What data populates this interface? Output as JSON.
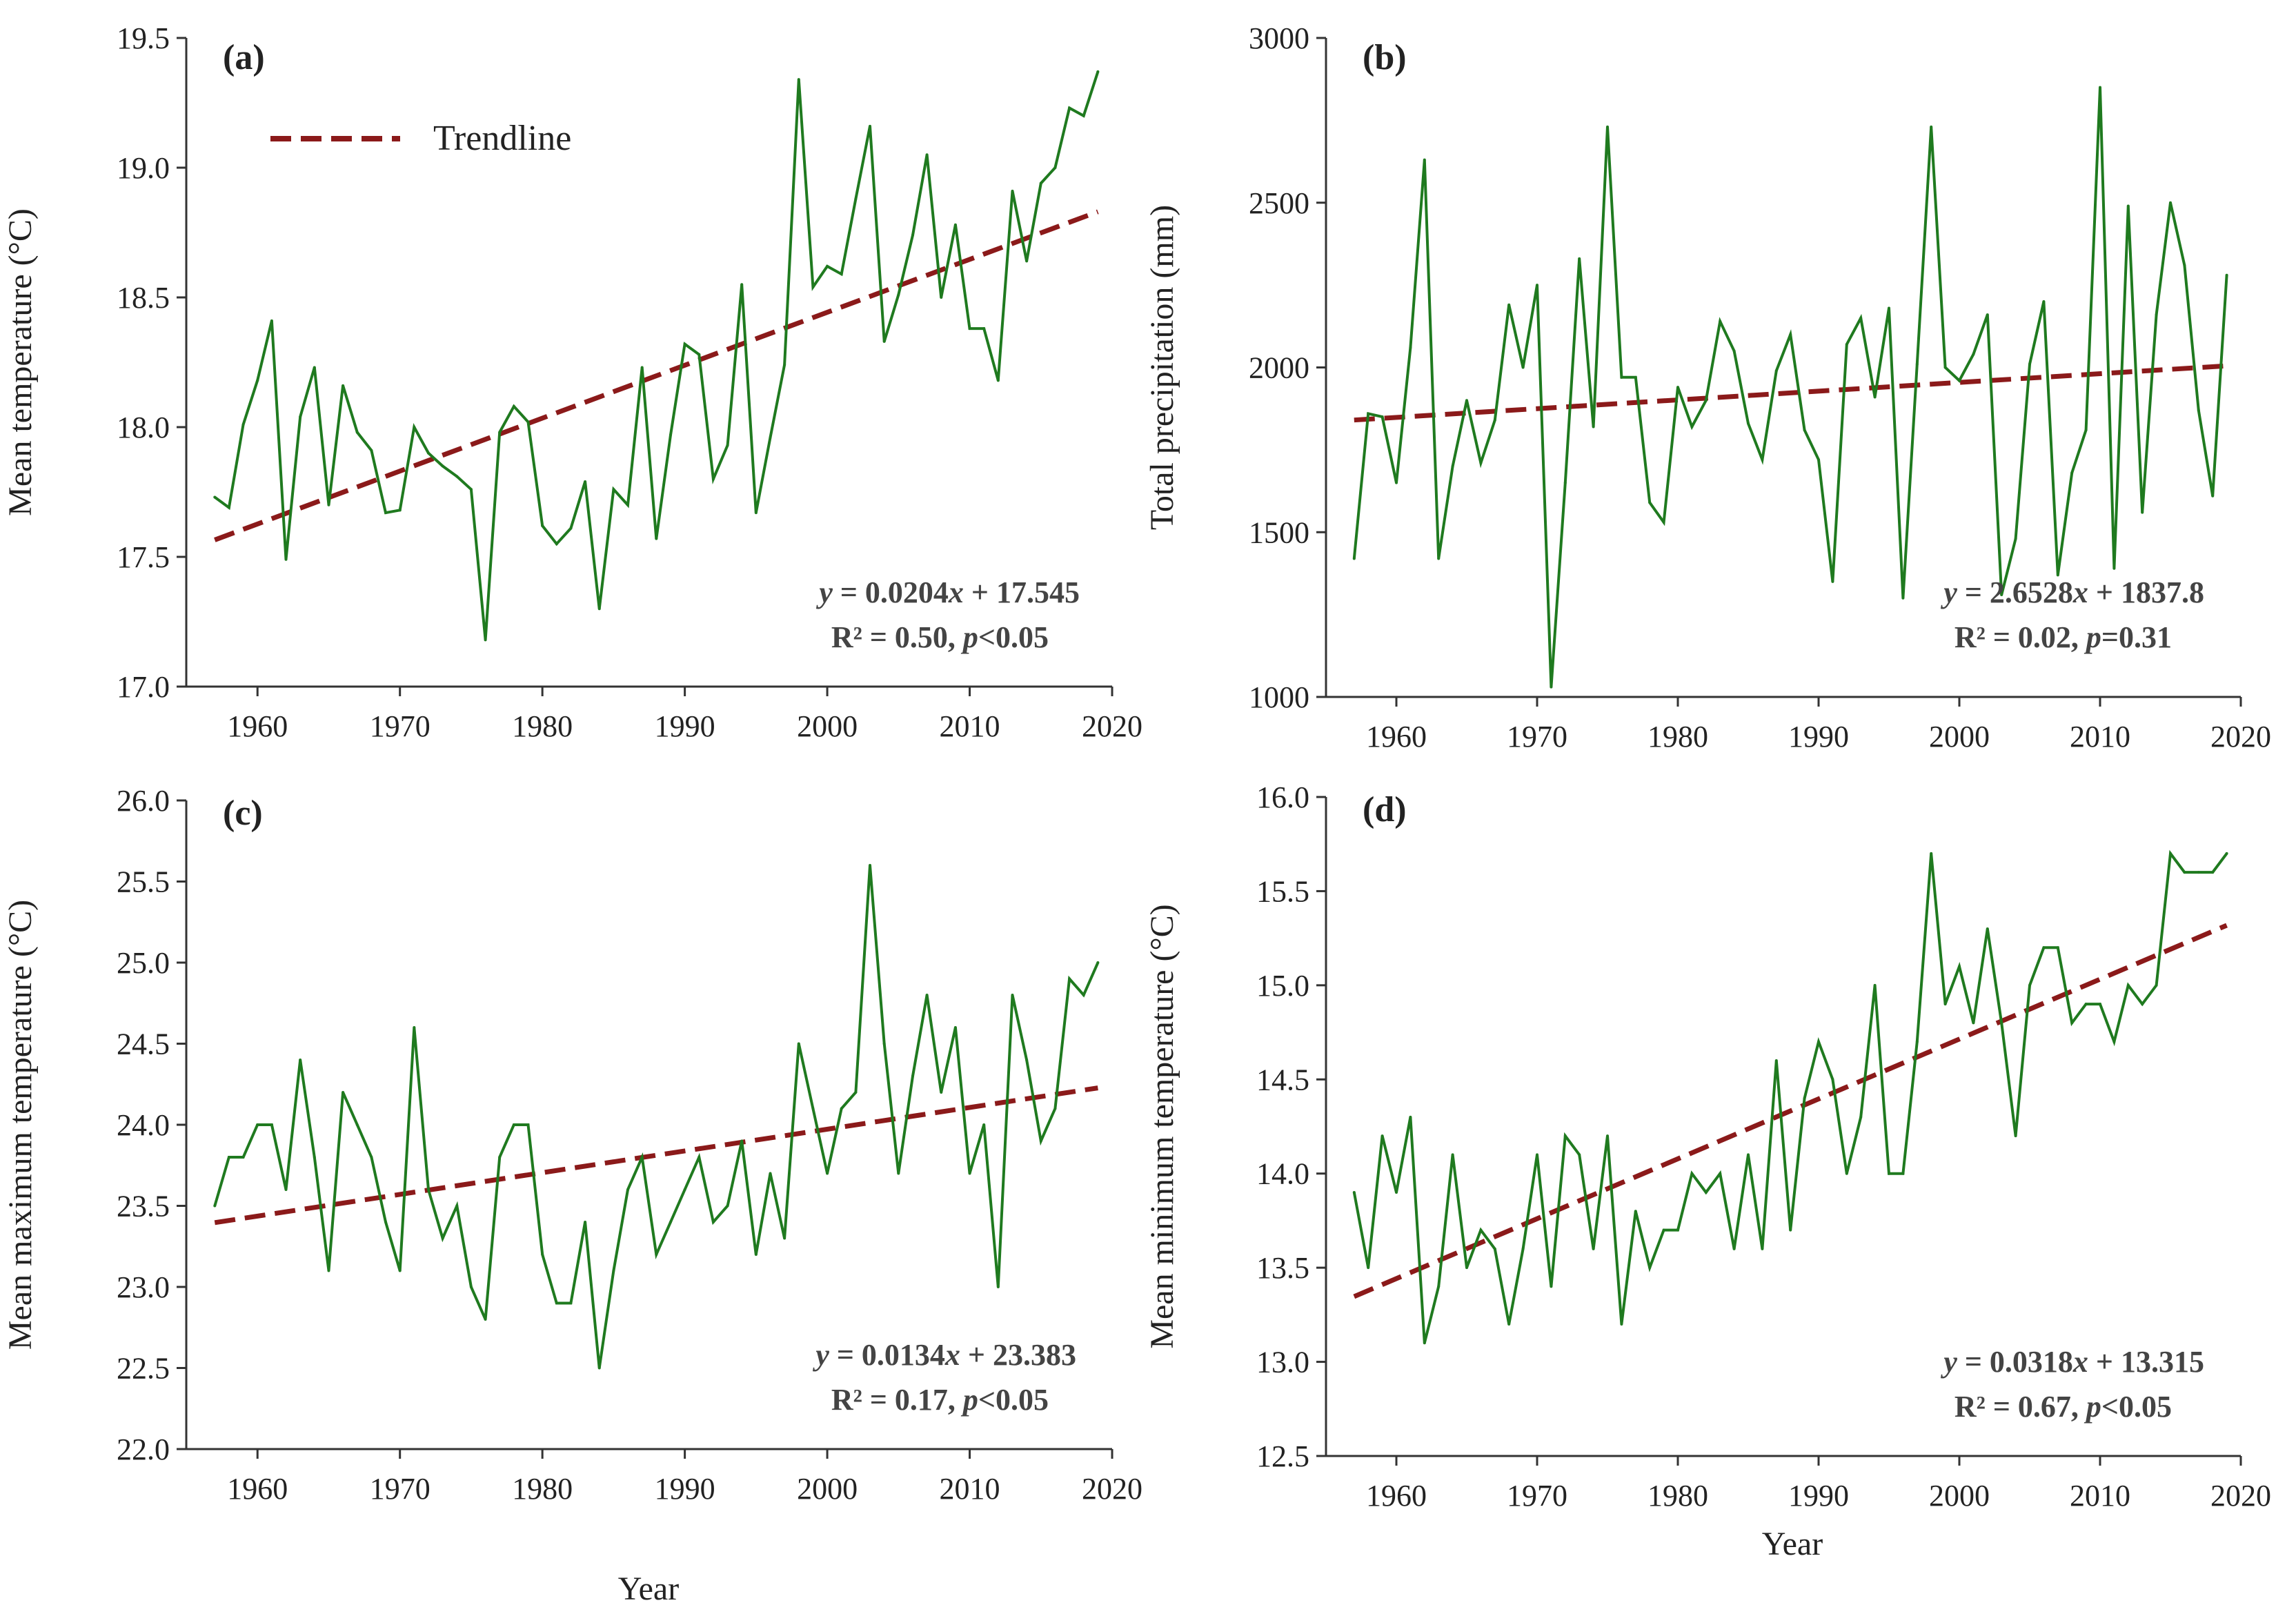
{
  "colors": {
    "series": "#1f7a1f",
    "trend": "#8b1a1a",
    "axis": "#333333",
    "text": "#222222"
  },
  "chart_data": [
    {
      "type": "line",
      "panel_label": "(a)",
      "xlabel": "",
      "ylabel": "Mean temperature (°C)",
      "xlim": [
        1955,
        2020
      ],
      "ylim": [
        17.0,
        19.5
      ],
      "xticks": [
        1960,
        1970,
        1980,
        1990,
        2000,
        2010,
        2020
      ],
      "yticks": [
        "17.0",
        "17.5",
        "18.0",
        "18.5",
        "19.0",
        "19.5"
      ],
      "legend": {
        "label": "Trendline",
        "position": "top-left"
      },
      "equation": {
        "prefix": "y",
        "body": " = 0.0204",
        "var": "x",
        "tail": " + 17.545"
      },
      "stats": {
        "r2": "R² = 0.50, ",
        "p": "p",
        "ptail": "<0.05"
      },
      "trend": {
        "slope": 0.0204,
        "intercept": 17.545,
        "base_year": 1956
      },
      "x": [
        1957,
        1958,
        1959,
        1960,
        1961,
        1962,
        1963,
        1964,
        1965,
        1966,
        1967,
        1968,
        1969,
        1970,
        1971,
        1972,
        1973,
        1974,
        1975,
        1976,
        1977,
        1978,
        1979,
        1980,
        1981,
        1982,
        1983,
        1984,
        1985,
        1986,
        1987,
        1988,
        1989,
        1990,
        1991,
        1992,
        1993,
        1994,
        1995,
        1996,
        1997,
        1998,
        1999,
        2000,
        2001,
        2002,
        2003,
        2004,
        2005,
        2006,
        2007,
        2008,
        2009,
        2010,
        2011,
        2012,
        2013,
        2014,
        2015,
        2016,
        2017,
        2018,
        2019
      ],
      "y": [
        17.73,
        17.69,
        18.01,
        18.18,
        18.41,
        17.49,
        18.04,
        18.23,
        17.7,
        18.16,
        17.98,
        17.91,
        17.67,
        17.68,
        18.0,
        17.9,
        17.85,
        17.81,
        17.76,
        17.18,
        17.98,
        18.08,
        18.02,
        17.62,
        17.55,
        17.61,
        17.79,
        17.3,
        17.76,
        17.7,
        18.23,
        17.57,
        17.97,
        18.32,
        18.28,
        17.8,
        17.93,
        18.55,
        17.67,
        17.96,
        18.24,
        19.34,
        18.54,
        18.62,
        18.59,
        18.88,
        19.16,
        18.33,
        18.51,
        18.74,
        19.05,
        18.5,
        18.78,
        18.38,
        18.38,
        18.18,
        18.91,
        18.64,
        18.94,
        19.0,
        19.23,
        19.2,
        19.37
      ]
    },
    {
      "type": "line",
      "panel_label": "(b)",
      "xlabel": "",
      "ylabel": "Total precipitation (mm)",
      "xlim": [
        1955,
        2020
      ],
      "ylim": [
        1000,
        3000
      ],
      "xticks": [
        1960,
        1970,
        1980,
        1990,
        2000,
        2010,
        2020
      ],
      "yticks": [
        "1000",
        "1500",
        "2000",
        "2500",
        "3000"
      ],
      "equation": {
        "prefix": "y",
        "body": " = 2.6528",
        "var": "x",
        "tail": " + 1837.8"
      },
      "stats": {
        "r2": "R² = 0.02, ",
        "p": "p",
        "ptail": "=0.31"
      },
      "trend": {
        "slope": 2.6528,
        "intercept": 1837.8,
        "base_year": 1956
      },
      "x": [
        1957,
        1958,
        1959,
        1960,
        1961,
        1962,
        1963,
        1964,
        1965,
        1966,
        1967,
        1968,
        1969,
        1970,
        1971,
        1972,
        1973,
        1974,
        1975,
        1976,
        1977,
        1978,
        1979,
        1980,
        1981,
        1982,
        1983,
        1984,
        1985,
        1986,
        1987,
        1988,
        1989,
        1990,
        1991,
        1992,
        1993,
        1994,
        1995,
        1996,
        1997,
        1998,
        1999,
        2000,
        2001,
        2002,
        2003,
        2004,
        2005,
        2006,
        2007,
        2008,
        2009,
        2010,
        2011,
        2012,
        2013,
        2014,
        2015,
        2016,
        2017,
        2018,
        2019
      ],
      "y": [
        1420,
        1860,
        1850,
        1650,
        2060,
        2630,
        1420,
        1700,
        1900,
        1710,
        1840,
        2190,
        2000,
        2250,
        1030,
        1650,
        2330,
        1820,
        2730,
        1970,
        1970,
        1590,
        1530,
        1940,
        1820,
        1900,
        2140,
        2050,
        1830,
        1720,
        1990,
        2100,
        1810,
        1720,
        1350,
        2070,
        2150,
        1910,
        2180,
        1300,
        2010,
        2730,
        2000,
        1960,
        2040,
        2160,
        1310,
        1480,
        2010,
        2200,
        1370,
        1680,
        1810,
        2850,
        1390,
        2490,
        1560,
        2160,
        2500,
        2310,
        1870,
        1610,
        2280
      ]
    },
    {
      "type": "line",
      "panel_label": "(c)",
      "xlabel": "",
      "ylabel": "Mean maximum temperature  (°C)",
      "xlim": [
        1955,
        2020
      ],
      "ylim": [
        22.0,
        26.0
      ],
      "xticks": [
        1960,
        1970,
        1980,
        1990,
        2000,
        2010,
        2020
      ],
      "yticks": [
        "22.0",
        "22.5",
        "23.0",
        "23.5",
        "24.0",
        "24.5",
        "25.0",
        "25.5",
        "26.0"
      ],
      "equation": {
        "prefix": "y",
        "body": " = 0.0134",
        "var": "x",
        "tail": " + 23.383"
      },
      "stats": {
        "r2": "R² = 0.17, ",
        "p": "p",
        "ptail": "<0.05"
      },
      "trend": {
        "slope": 0.0134,
        "intercept": 23.383,
        "base_year": 1956
      },
      "x": [
        1957,
        1958,
        1959,
        1960,
        1961,
        1962,
        1963,
        1964,
        1965,
        1966,
        1967,
        1968,
        1969,
        1970,
        1971,
        1972,
        1973,
        1974,
        1975,
        1976,
        1977,
        1978,
        1979,
        1980,
        1981,
        1982,
        1983,
        1984,
        1985,
        1986,
        1987,
        1988,
        1989,
        1990,
        1991,
        1992,
        1993,
        1994,
        1995,
        1996,
        1997,
        1998,
        1999,
        2000,
        2001,
        2002,
        2003,
        2004,
        2005,
        2006,
        2007,
        2008,
        2009,
        2010,
        2011,
        2012,
        2013,
        2014,
        2015,
        2016,
        2017,
        2018,
        2019
      ],
      "y": [
        23.5,
        23.8,
        23.8,
        24.0,
        24.0,
        23.6,
        24.4,
        23.8,
        23.1,
        24.2,
        24.0,
        23.8,
        23.4,
        23.1,
        24.6,
        23.6,
        23.3,
        23.5,
        23.0,
        22.8,
        23.8,
        24.0,
        24.0,
        23.2,
        22.9,
        22.9,
        23.4,
        22.5,
        23.1,
        23.6,
        23.8,
        23.2,
        23.4,
        23.6,
        23.8,
        23.4,
        23.5,
        23.9,
        23.2,
        23.7,
        23.3,
        24.5,
        24.1,
        23.7,
        24.1,
        24.2,
        25.6,
        24.5,
        23.7,
        24.3,
        24.8,
        24.2,
        24.6,
        23.7,
        24.0,
        23.0,
        24.8,
        24.4,
        23.9,
        24.1,
        24.9,
        24.8,
        25.0
      ]
    },
    {
      "type": "line",
      "panel_label": "(d)",
      "xlabel": "Year",
      "ylabel": "Mean minimum temperature  (°C)",
      "xlim": [
        1955,
        2020
      ],
      "ylim": [
        12.5,
        16.0
      ],
      "xticks": [
        1960,
        1970,
        1980,
        1990,
        2000,
        2010,
        2020
      ],
      "yticks": [
        "12.5",
        "13.0",
        "13.5",
        "14.0",
        "14.5",
        "15.0",
        "15.5",
        "16.0"
      ],
      "equation": {
        "prefix": "y",
        "body": " = 0.0318",
        "var": "x",
        "tail": " + 13.315"
      },
      "stats": {
        "r2": "R² = 0.67, ",
        "p": "p",
        "ptail": "<0.05"
      },
      "trend": {
        "slope": 0.0318,
        "intercept": 13.315,
        "base_year": 1956
      },
      "x": [
        1957,
        1958,
        1959,
        1960,
        1961,
        1962,
        1963,
        1964,
        1965,
        1966,
        1967,
        1968,
        1969,
        1970,
        1971,
        1972,
        1973,
        1974,
        1975,
        1976,
        1977,
        1978,
        1979,
        1980,
        1981,
        1982,
        1983,
        1984,
        1985,
        1986,
        1987,
        1988,
        1989,
        1990,
        1991,
        1992,
        1993,
        1994,
        1995,
        1996,
        1997,
        1998,
        1999,
        2000,
        2001,
        2002,
        2003,
        2004,
        2005,
        2006,
        2007,
        2008,
        2009,
        2010,
        2011,
        2012,
        2013,
        2014,
        2015,
        2016,
        2017,
        2018,
        2019
      ],
      "y": [
        13.9,
        13.5,
        14.2,
        13.9,
        14.3,
        13.1,
        13.4,
        14.1,
        13.5,
        13.7,
        13.6,
        13.2,
        13.6,
        14.1,
        13.4,
        14.2,
        14.1,
        13.6,
        14.2,
        13.2,
        13.8,
        13.5,
        13.7,
        13.7,
        14.0,
        13.9,
        14.0,
        13.6,
        14.1,
        13.6,
        14.6,
        13.7,
        14.4,
        14.7,
        14.5,
        14.0,
        14.3,
        15.0,
        14.0,
        14.0,
        14.7,
        15.7,
        14.9,
        15.1,
        14.8,
        15.3,
        14.8,
        14.2,
        15.0,
        15.2,
        15.2,
        14.8,
        14.9,
        14.9,
        14.7,
        15.0,
        14.9,
        15.0,
        15.7,
        15.6,
        15.6,
        15.6,
        15.7
      ]
    }
  ]
}
